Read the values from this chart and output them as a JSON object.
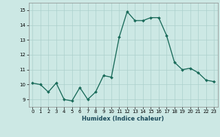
{
  "x": [
    0,
    1,
    2,
    3,
    4,
    5,
    6,
    7,
    8,
    9,
    10,
    11,
    12,
    13,
    14,
    15,
    16,
    17,
    18,
    19,
    20,
    21,
    22,
    23
  ],
  "y": [
    10.1,
    10.0,
    9.5,
    10.1,
    9.0,
    8.9,
    9.8,
    9.0,
    9.5,
    10.6,
    10.5,
    13.2,
    14.9,
    14.3,
    14.3,
    14.5,
    14.5,
    13.3,
    11.5,
    11.0,
    11.1,
    10.8,
    10.3,
    10.2
  ],
  "xlabel": "Humidex (Indice chaleur)",
  "ylim": [
    8.5,
    15.5
  ],
  "xlim": [
    -0.5,
    23.5
  ],
  "yticks": [
    9,
    10,
    11,
    12,
    13,
    14,
    15
  ],
  "xticks": [
    0,
    1,
    2,
    3,
    4,
    5,
    6,
    7,
    8,
    9,
    10,
    11,
    12,
    13,
    14,
    15,
    16,
    17,
    18,
    19,
    20,
    21,
    22,
    23
  ],
  "xtick_labels": [
    "0",
    "1",
    "2",
    "3",
    "4",
    "5",
    "6",
    "7",
    "8",
    "9",
    "10",
    "11",
    "12",
    "13",
    "14",
    "15",
    "16",
    "17",
    "18",
    "19",
    "20",
    "21",
    "22",
    "23"
  ],
  "line_color": "#1a6b5a",
  "marker_color": "#1a6b5a",
  "bg_color": "#cce8e4",
  "grid_color": "#aacfcb",
  "markersize": 2.0,
  "linewidth": 1.0,
  "xlabel_fontsize": 6.0,
  "tick_fontsize": 5.0
}
